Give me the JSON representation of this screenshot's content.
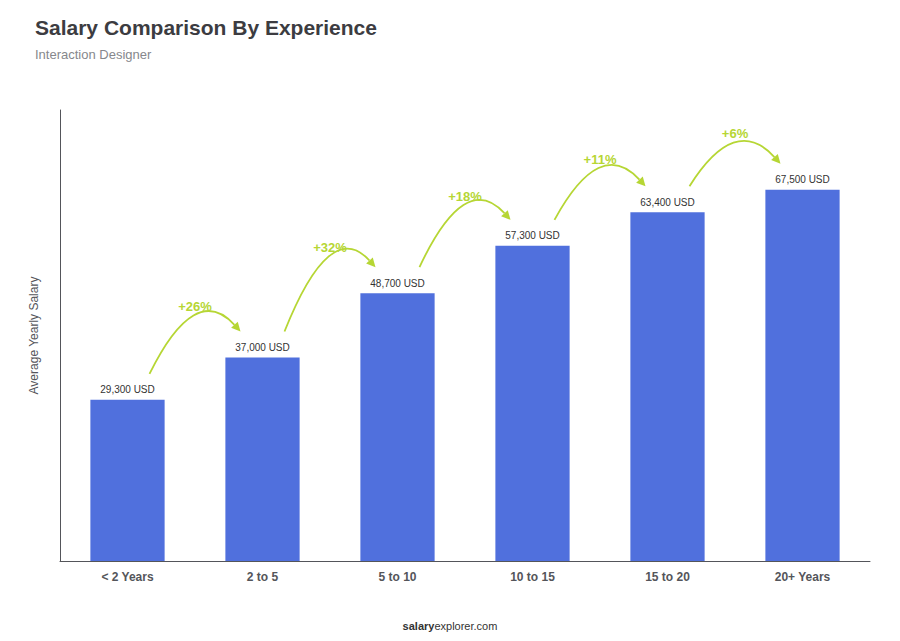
{
  "chart_data": {
    "type": "bar",
    "title": "Salary Comparison By Experience",
    "subtitle": "Interaction Designer",
    "ylabel": "Average Yearly Salary",
    "categories": [
      "< 2 Years",
      "2 to 5",
      "5 to 10",
      "10 to 15",
      "15 to 20",
      "20+ Years"
    ],
    "values": [
      29300,
      37000,
      48700,
      57300,
      63400,
      67500
    ],
    "value_labels": [
      "29,300 USD",
      "37,000 USD",
      "48,700 USD",
      "57,300 USD",
      "63,400 USD",
      "67,500 USD"
    ],
    "data_labels": true,
    "annotations": [
      "+26%",
      "+32%",
      "+18%",
      "+11%",
      "+6%"
    ],
    "footer_bold": "salary",
    "footer_normal": "explorer.com",
    "ylim": [
      0,
      82000
    ],
    "grid": false,
    "tick_labels": "x"
  }
}
